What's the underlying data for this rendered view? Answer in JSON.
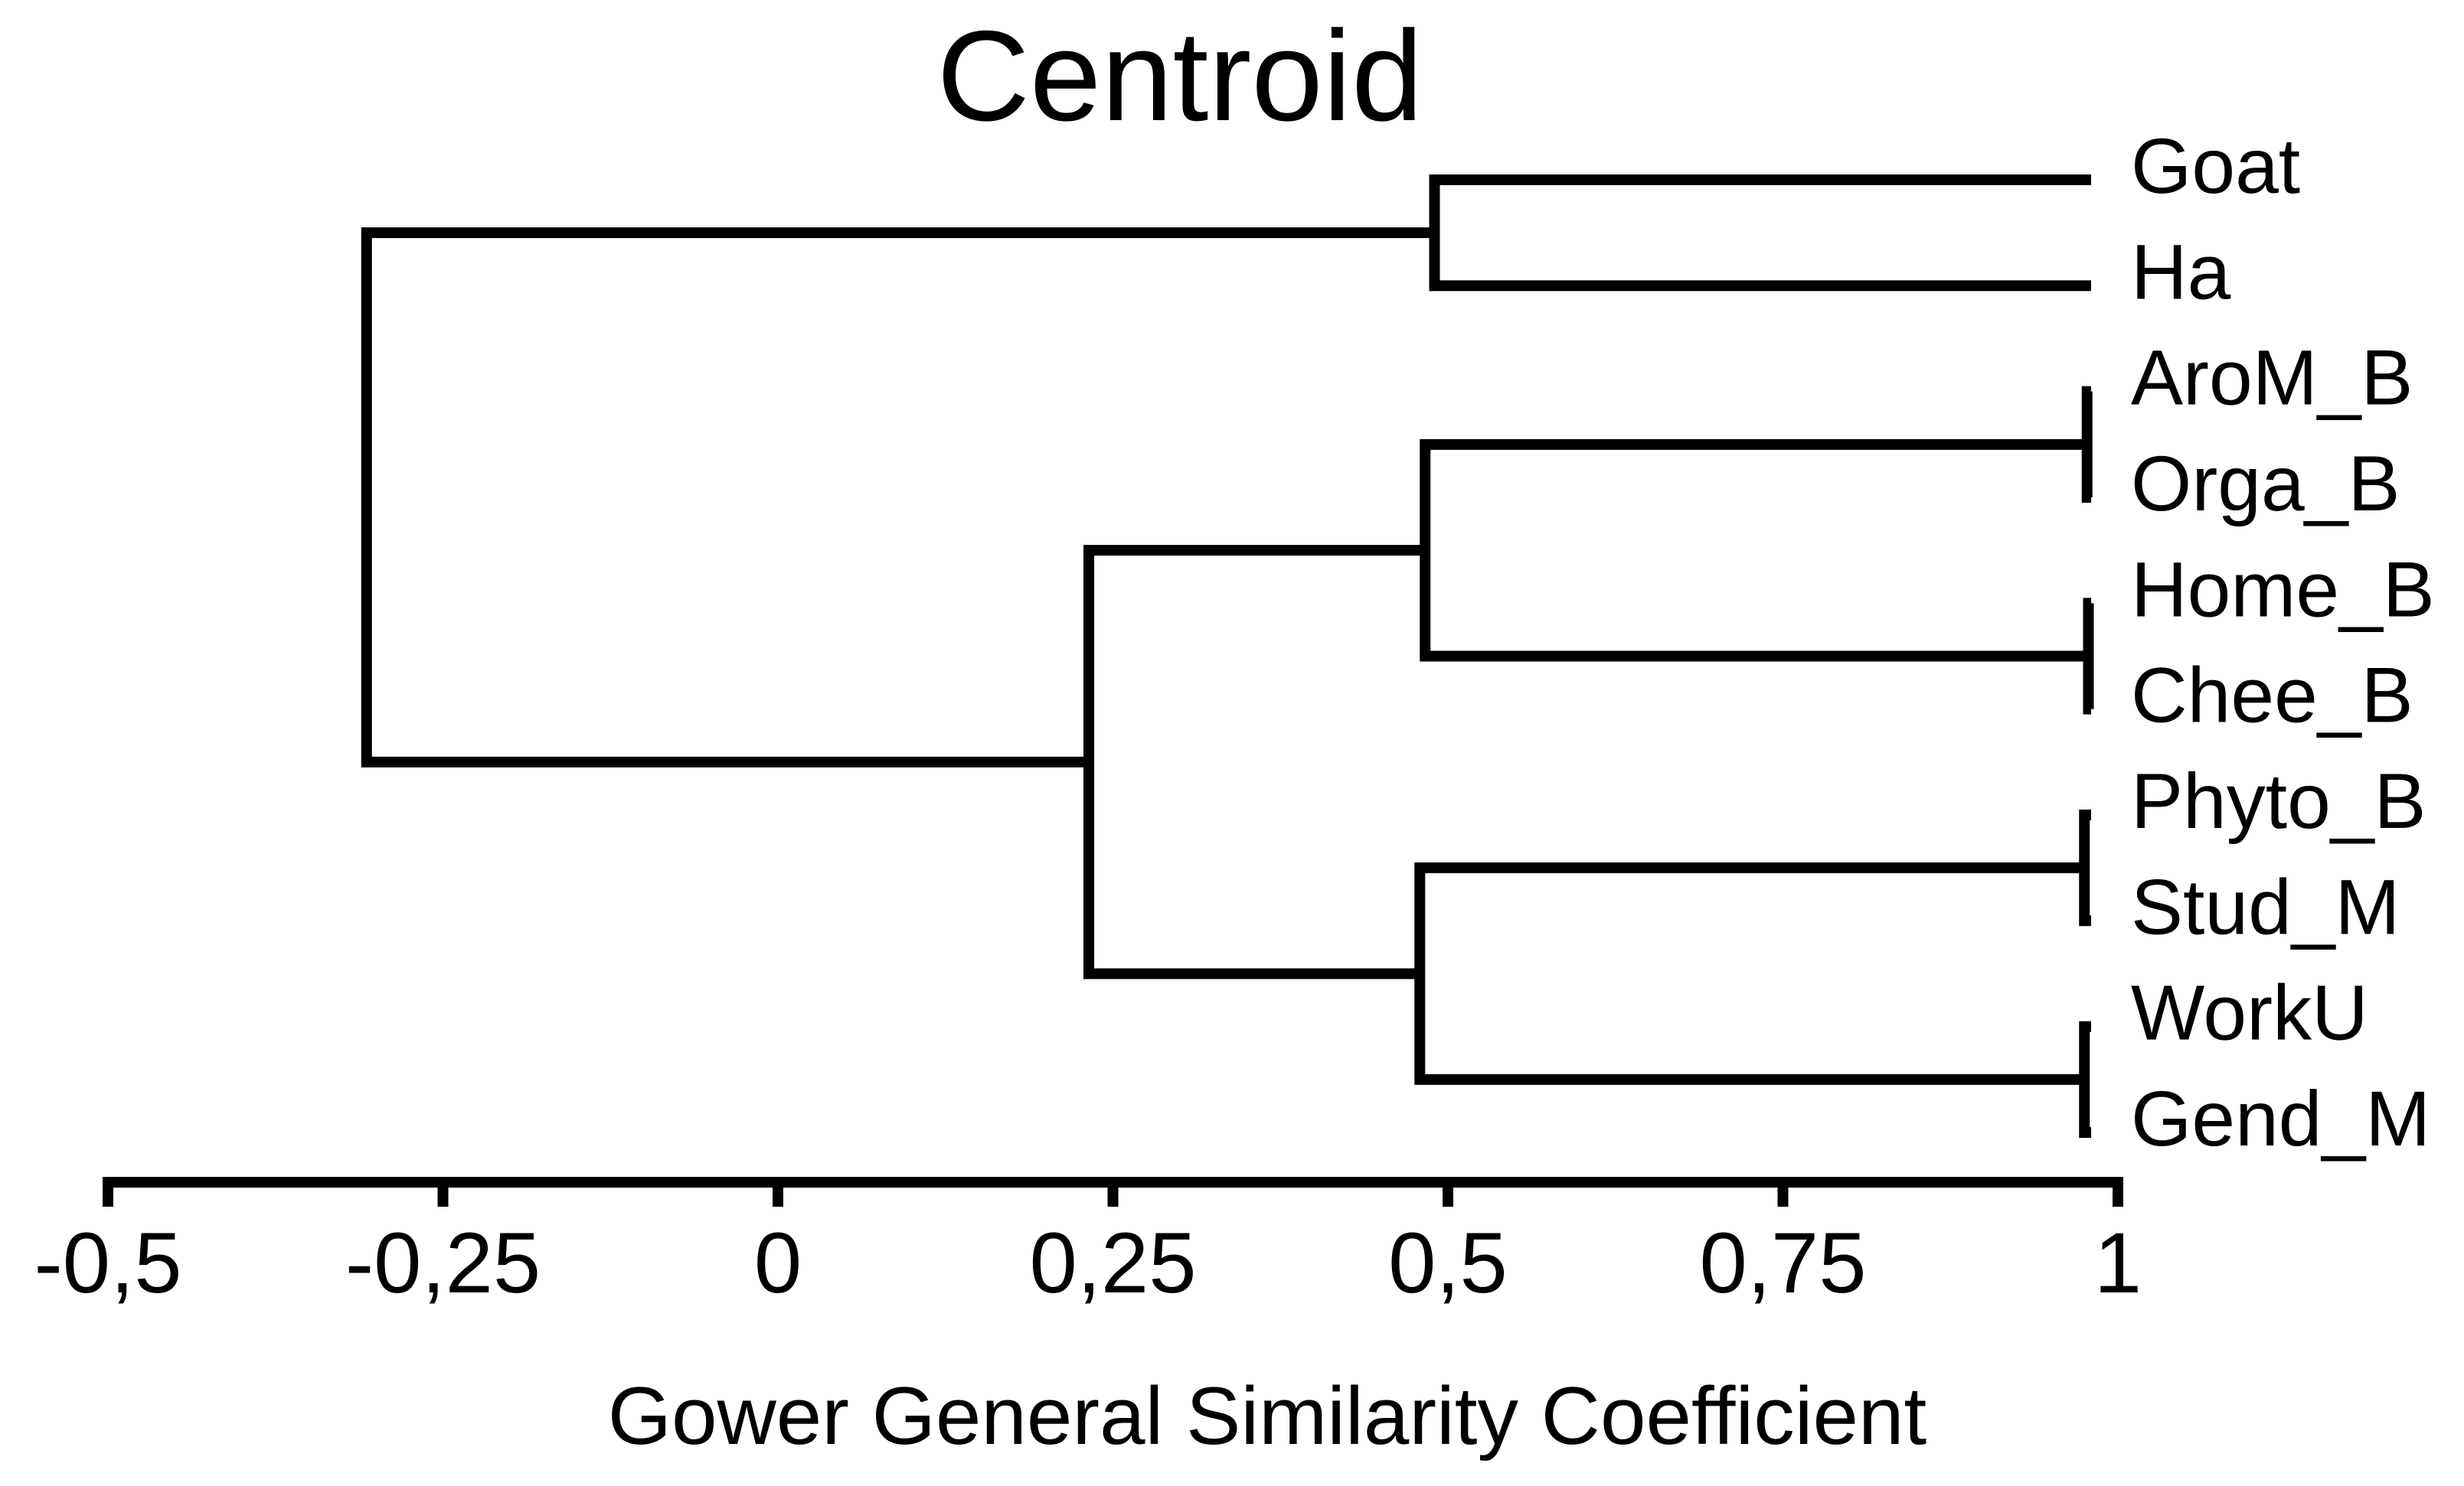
{
  "chart_data": {
    "type": "dendrogram",
    "orientation": "horizontal-right",
    "title": "Centroid",
    "xlabel": "Gower General Similarity Coefficient",
    "xlim": [
      -0.5,
      1
    ],
    "grid": false,
    "line_color": "#000000",
    "background_color": "#ffffff",
    "x_ticks": [
      {
        "value": -0.5,
        "label": "-0,5"
      },
      {
        "value": -0.25,
        "label": "-0,25"
      },
      {
        "value": 0,
        "label": "0"
      },
      {
        "value": 0.25,
        "label": "0,25"
      },
      {
        "value": 0.5,
        "label": "0,5"
      },
      {
        "value": 0.75,
        "label": "0,75"
      },
      {
        "value": 1,
        "label": "1"
      }
    ],
    "leaves": [
      "Goat",
      "Ha",
      "AroM_B",
      "Orga_B",
      "Home_B",
      "Chee_B",
      "Phyto_B",
      "Stud_M",
      "WorkU",
      "Gend_M"
    ],
    "leaf_tip_similarity": 0.98,
    "merges": [
      {
        "id": "GoatHa",
        "children": [
          "Goat",
          "Ha"
        ],
        "similarity": 0.49
      },
      {
        "id": "AroOrga",
        "children": [
          "AroM_B",
          "Orga_B"
        ],
        "similarity": 0.977
      },
      {
        "id": "HomeChee",
        "children": [
          "Home_B",
          "Chee_B"
        ],
        "similarity": 0.978
      },
      {
        "id": "B4",
        "children": [
          "AroOrga",
          "HomeChee"
        ],
        "similarity": 0.483
      },
      {
        "id": "PhytoStud",
        "children": [
          "Phyto_B",
          "Stud_M"
        ],
        "similarity": 0.975
      },
      {
        "id": "WorkGend",
        "children": [
          "WorkU",
          "Gend_M"
        ],
        "similarity": 0.975
      },
      {
        "id": "M4",
        "children": [
          "PhytoStud",
          "WorkGend"
        ],
        "similarity": 0.479
      },
      {
        "id": "Eight",
        "children": [
          "B4",
          "M4"
        ],
        "similarity": 0.232
      },
      {
        "id": "Root",
        "children": [
          "GoatHa",
          "Eight"
        ],
        "similarity": -0.307
      }
    ]
  }
}
